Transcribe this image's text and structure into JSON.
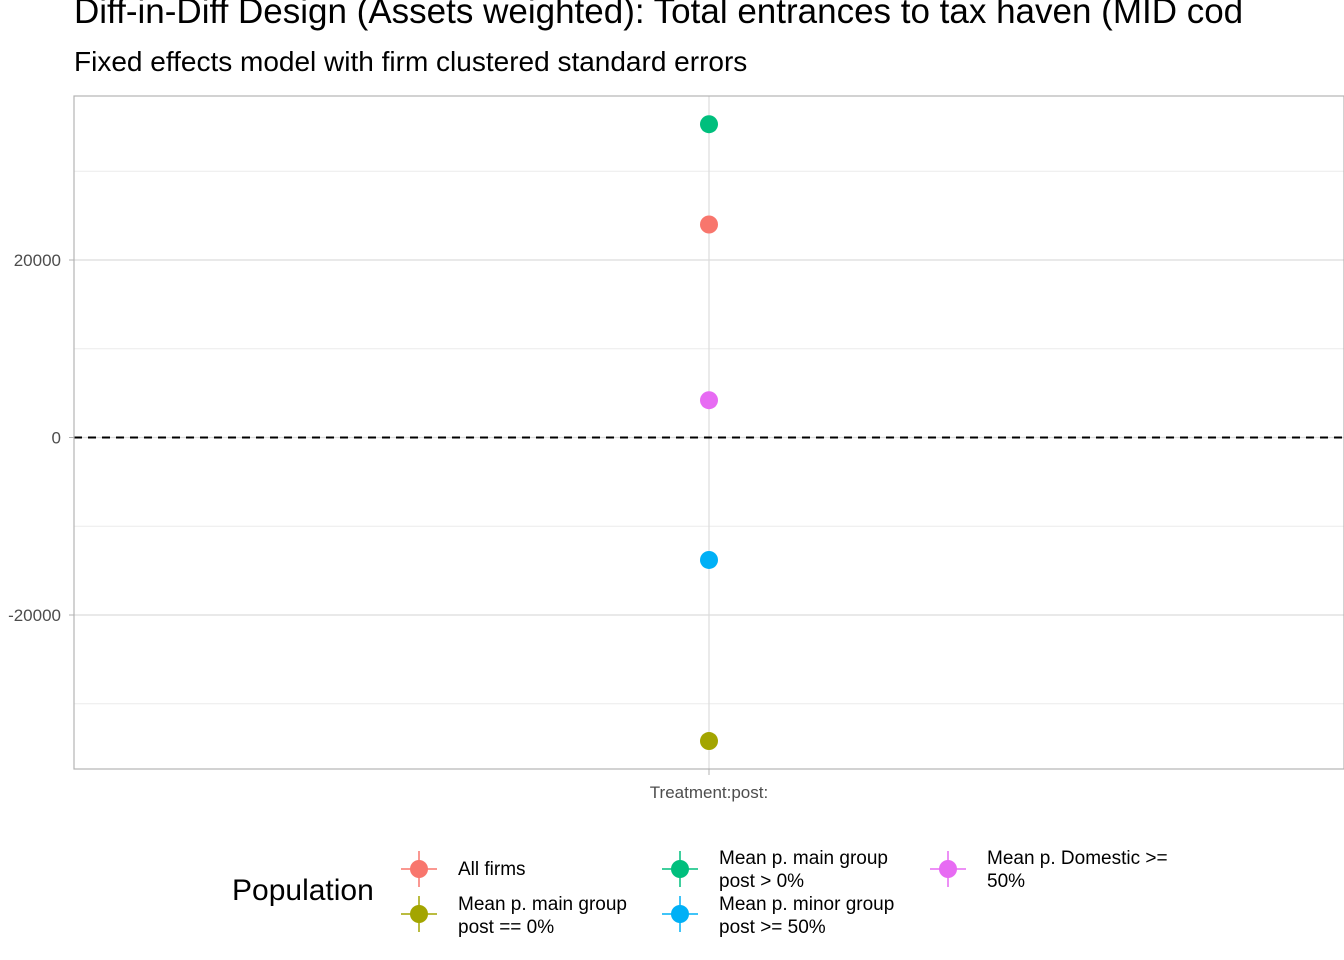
{
  "chart_data": {
    "type": "scatter",
    "title": "Diff-in-Diff Design (Assets weighted): Total entrances to tax haven (MID cod",
    "subtitle": "Fixed effects model with firm clustered standard errors",
    "xlabel": "",
    "ylabel": "",
    "categories": [
      "Treatment:post:"
    ],
    "ylim": [
      -37000,
      38500
    ],
    "yticks": [
      -20000,
      0,
      20000
    ],
    "ytick_labels": [
      "-20000",
      "0",
      "20000"
    ],
    "reference_line": {
      "y": 0,
      "style": "dashed"
    },
    "grid": true,
    "legend": {
      "title": "Population",
      "position": "bottom"
    },
    "series": [
      {
        "name": "All firms",
        "color": "#F8766D",
        "x": "Treatment:post:",
        "y": 24000
      },
      {
        "name": "Mean p. main group\npost == 0%",
        "color": "#A3A500",
        "x": "Treatment:post:",
        "y": -34200
      },
      {
        "name": "Mean p. main group\npost > 0%",
        "color": "#00BF7D",
        "x": "Treatment:post:",
        "y": 35300
      },
      {
        "name": "Mean p. minor group\npost >= 50%",
        "color": "#00B0F6",
        "x": "Treatment:post:",
        "y": -13800
      },
      {
        "name": "Mean p. Domestic >=\n50%",
        "color": "#E76BF3",
        "x": "Treatment:post:",
        "y": 4200
      }
    ]
  }
}
